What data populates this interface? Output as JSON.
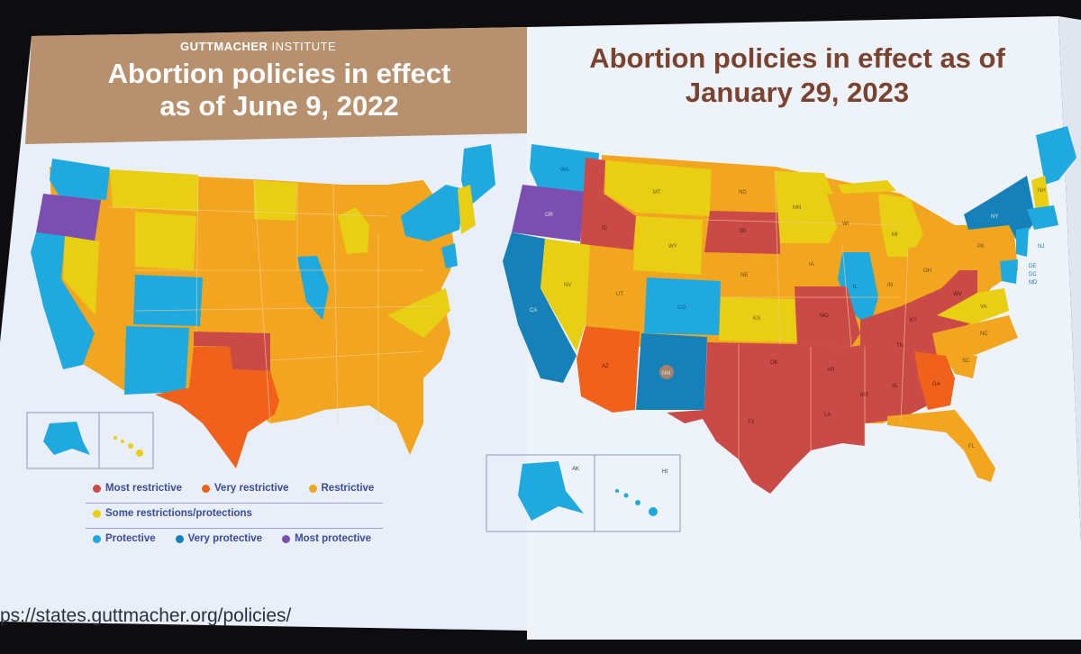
{
  "left_map": {
    "org_bold": "GUTTMACHER",
    "org_rest": " INSTITUTE",
    "title_line1": "Abortion policies in effect",
    "title_line2": "as of June 9, 2022",
    "legend": {
      "most_restrictive": "Most restrictive",
      "very_restrictive": "Very restrictive",
      "restrictive": "Restrictive",
      "some": "Some restrictions/protections",
      "protective": "Protective",
      "very_protective": "Very protective",
      "most_protective": "Most protective"
    }
  },
  "right_map": {
    "title_line1": "Abortion policies in effect as of",
    "title_line2": "January 29, 2023",
    "state_labels": {
      "WA": "WA",
      "OR": "OR",
      "ID": "ID",
      "MT": "MT",
      "ND": "ND",
      "MN": "MN",
      "SD": "SD",
      "WY": "WY",
      "NV": "NV",
      "UT": "UT",
      "CO": "CO",
      "NE": "NE",
      "IA": "IA",
      "WI": "WI",
      "MI": "MI",
      "KS": "KS",
      "MO": "MO",
      "IL": "IL",
      "IN": "IN",
      "OH": "OH",
      "PA": "PA",
      "NY": "NY",
      "CA": "CA",
      "AZ": "AZ",
      "NM": "NM",
      "TX": "TX",
      "OK": "OK",
      "AR": "AR",
      "LA": "LA",
      "MS": "MS",
      "AL": "AL",
      "TN": "TN",
      "KY": "KY",
      "WV": "WV",
      "VA": "VA",
      "NC": "NC",
      "SC": "SC",
      "GA": "GA",
      "FL": "FL",
      "NH": "NH",
      "NJ": "NJ",
      "DE": "DE",
      "DC": "DC",
      "MD": "MD",
      "AK": "AK",
      "HI": "HI"
    }
  },
  "url": "ps://states.guttmacher.org/policies/",
  "colors": {
    "most_restrictive": "#c94a46",
    "very_restrictive": "#f0621c",
    "restrictive": "#f2a51e",
    "some": "#e8cf14",
    "protective": "#1fa9df",
    "very_protective": "#1581b8",
    "most_protective": "#7b4fb0",
    "header_band": "#b7906e"
  }
}
